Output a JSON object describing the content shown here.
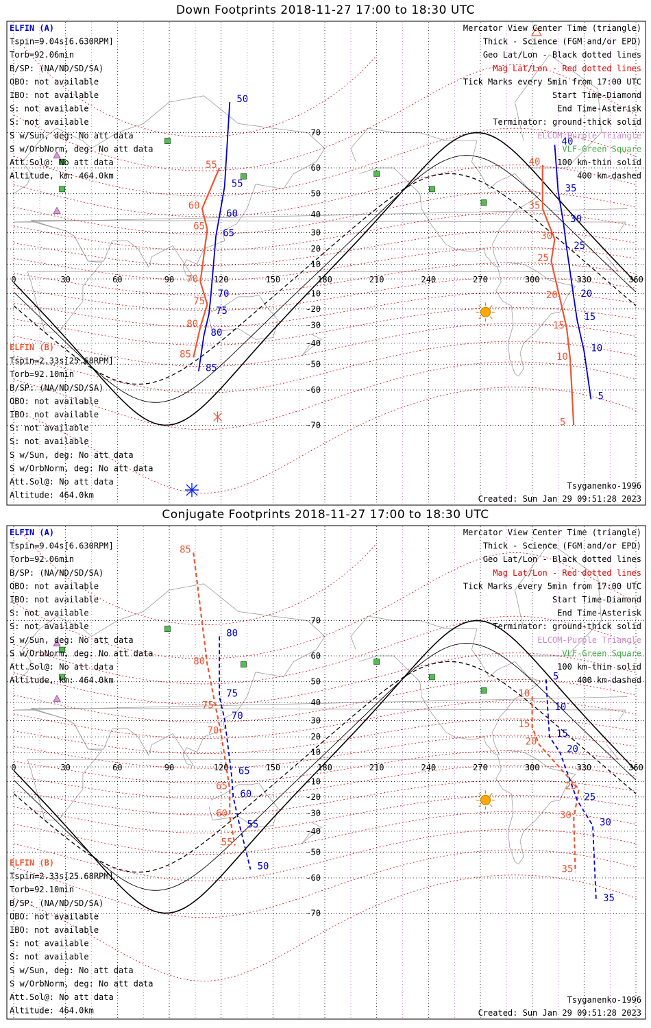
{
  "colors": {
    "elfin_a": "#0000cc",
    "elfin_b": "#ee5533",
    "mag_grid": "#dd0000",
    "geo_grid": "#000000",
    "lon_dots": "#cc66cc",
    "science": "#0000ff",
    "sun": "#ffaa00",
    "vlf": "#44aa44",
    "elcom": "#cc88cc",
    "coast": "#9a9a9a"
  },
  "icons": {
    "sun": "sun-icon",
    "elcom": "triangle-icon",
    "vlf": "square-icon",
    "start": "diamond-icon",
    "end": "asterisk-icon"
  },
  "lon_labels": [
    "0",
    "30",
    "60",
    "90",
    "120",
    "150",
    "180",
    "210",
    "240",
    "270",
    "300",
    "330",
    "360"
  ],
  "lat_labels": [
    "70",
    "60",
    "50",
    "40",
    "30",
    "20",
    "10",
    "-10",
    "-20",
    "-30",
    "-40",
    "-50",
    "-60",
    "-70"
  ],
  "panels": [
    {
      "title": "Down Footprints 2018-11-27 17:00 to 18:30 UTC",
      "legend": [
        {
          "text": "Mercator View Center Time (triangle)",
          "color": "#000000"
        },
        {
          "text": "Thick - Science (FGM and/or EPD)",
          "color": "#000000"
        },
        {
          "text": "Geo Lat/Lon - Black dotted lines",
          "color": "#000000"
        },
        {
          "text": "Mag Lat/Lon - Red dotted lines",
          "color": "#dd0000"
        },
        {
          "text": "Tick Marks every 5min from 17:00 UTC",
          "color": "#000000"
        },
        {
          "text": "Start Time-Diamond",
          "color": "#000000"
        },
        {
          "text": "End Time-Asterisk",
          "color": "#000000"
        },
        {
          "text": "Terminator: ground-thick solid",
          "color": "#000000"
        },
        {
          "text": "ELCOM-Purple Triangle",
          "color": "#cc88cc"
        },
        {
          "text": "VLF-Green Square",
          "color": "#44aa44"
        },
        {
          "text": "100 km-thin solid",
          "color": "#000000"
        },
        {
          "text": "400 km-dashed",
          "color": "#000000"
        }
      ],
      "elfin_a": {
        "name": "ELFIN (A)",
        "lines": [
          "Tspin=9.04s[6.630RPM]",
          "Torb=92.06min",
          "B/SP: (NA/ND/SD/SA)",
          "OBO: not available",
          "IBO: not available",
          "S: not available",
          "S: not available",
          "S w/Sun, deg: No att data",
          "S w/OrbNorm, deg: No att data",
          "Att.Sol@: No att data",
          "Altitude, km: 464.0km"
        ]
      },
      "elfin_b": {
        "name": "ELFIN (B)",
        "lines": [
          "Tspin=2.33s[25.68RPM]",
          "Torb=92.10min",
          "B/SP: (NA/ND/SD/SA)",
          "OBO: not available",
          "IBO: not available",
          "S: not available",
          "S: not available",
          "S w/Sun, deg: No att data",
          "S w/OrbNorm, deg: No att data",
          "Att.Sol@: No att data",
          "Altitude: 464.0km"
        ]
      },
      "model": "Tsyganenko-1996",
      "created": "Created: Sun Jan 29 09:51:28 2023",
      "track_a_ticks": [
        {
          "t": "50",
          "lon": 129,
          "lat": 76
        },
        {
          "t": "55",
          "lon": 126,
          "lat": 53
        },
        {
          "t": "60",
          "lon": 123,
          "lat": 39
        },
        {
          "t": "65",
          "lon": 121,
          "lat": 28
        },
        {
          "t": "70",
          "lon": 118,
          "lat": -12
        },
        {
          "t": "75",
          "lon": 117,
          "lat": -23
        },
        {
          "t": "80",
          "lon": 114,
          "lat": -36
        },
        {
          "t": "85",
          "lon": 111,
          "lat": -53
        },
        {
          "t": "40",
          "lon": 317,
          "lat": 67
        },
        {
          "t": "35",
          "lon": 319,
          "lat": 51
        },
        {
          "t": "30",
          "lon": 322,
          "lat": 36
        },
        {
          "t": "25",
          "lon": 324,
          "lat": 20
        },
        {
          "t": "20",
          "lon": 328,
          "lat": -12
        },
        {
          "t": "15",
          "lon": 330,
          "lat": -27
        },
        {
          "t": "10",
          "lon": 334,
          "lat": -44
        },
        {
          "t": "5",
          "lon": 338,
          "lat": -63
        }
      ],
      "track_b_ticks": [
        {
          "t": "55",
          "lon": 111,
          "lat": 60
        },
        {
          "t": "60",
          "lon": 101,
          "lat": 43
        },
        {
          "t": "65",
          "lon": 104,
          "lat": 32
        },
        {
          "t": "70",
          "lon": 100,
          "lat": -2
        },
        {
          "t": "75",
          "lon": 104,
          "lat": -17
        },
        {
          "t": "80",
          "lon": 100,
          "lat": -31
        },
        {
          "t": "85",
          "lon": 96,
          "lat": -47
        },
        {
          "t": "40",
          "lon": 298,
          "lat": 61
        },
        {
          "t": "35",
          "lon": 298,
          "lat": 43
        },
        {
          "t": "30",
          "lon": 305,
          "lat": 26
        },
        {
          "t": "25",
          "lon": 303,
          "lat": 12
        },
        {
          "t": "20",
          "lon": 308,
          "lat": -13
        },
        {
          "t": "15",
          "lon": 312,
          "lat": -32
        },
        {
          "t": "10",
          "lon": 314,
          "lat": -48
        },
        {
          "t": "5",
          "lon": 316,
          "lat": -70
        }
      ]
    },
    {
      "title": "Conjugate Footprints 2018-11-27 17:00 to 18:30 UTC",
      "legend": [
        {
          "text": "Mercator View Center Time (triangle)",
          "color": "#000000"
        },
        {
          "text": "Thick - Science (FGM and/or EPD)",
          "color": "#000000"
        },
        {
          "text": "Geo Lat/Lon - Black dotted lines",
          "color": "#000000"
        },
        {
          "text": "Mag Lat/Lon - Red dotted lines",
          "color": "#dd0000"
        },
        {
          "text": "Tick Marks every 5min from 17:00 UTC",
          "color": "#000000"
        },
        {
          "text": "Start Time-Diamond",
          "color": "#000000"
        },
        {
          "text": "End Time-Asterisk",
          "color": "#000000"
        },
        {
          "text": "Terminator: ground-thick solid",
          "color": "#000000"
        },
        {
          "text": "ELCOM-Purple Triangle",
          "color": "#cc88cc"
        },
        {
          "text": "VLF-Green Square",
          "color": "#44aa44"
        },
        {
          "text": "100 km-thin solid",
          "color": "#000000"
        },
        {
          "text": "400 km-dashed",
          "color": "#000000"
        }
      ],
      "elfin_a": {
        "name": "ELFIN (A)",
        "lines": [
          "Tspin=9.04s[6.630RPM]",
          "Torb=92.06min",
          "B/SP: (NA/ND/SD/SA)",
          "OBO: not available",
          "IBO: not available",
          "S: not available",
          "S: not available",
          "S w/Sun, deg: No att data",
          "S w/OrbNorm, deg: No att data",
          "Att.Sol@: No att data",
          "Altitude, km: 464.0km"
        ]
      },
      "elfin_b": {
        "name": "ELFIN (B)",
        "lines": [
          "Tspin=2.33s[25.68RPM]",
          "Torb=92.10min",
          "B/SP: (NA/ND/SD/SA)",
          "OBO: not available",
          "IBO: not available",
          "S: not available",
          "S: not available",
          "S w/Sun, deg: No att data",
          "S w/OrbNorm, deg: No att data",
          "Att.Sol@: No att data",
          "Altitude: 464.0km"
        ]
      },
      "model": "Tsyganenko-1996",
      "created": "Created: Sun Jan 29 09:51:28 2023",
      "track_a_ticks": [
        {
          "t": "80",
          "lon": 123,
          "lat": 66
        },
        {
          "t": "75",
          "lon": 123,
          "lat": 43
        },
        {
          "t": "70",
          "lon": 126,
          "lat": 31
        },
        {
          "t": "65",
          "lon": 130,
          "lat": -5
        },
        {
          "t": "60",
          "lon": 131,
          "lat": -20
        },
        {
          "t": "55",
          "lon": 135,
          "lat": -38
        },
        {
          "t": "50",
          "lon": 141,
          "lat": -57
        },
        {
          "t": "5",
          "lon": 312,
          "lat": 51
        },
        {
          "t": "10",
          "lon": 313,
          "lat": 36
        },
        {
          "t": "15",
          "lon": 314,
          "lat": 20
        },
        {
          "t": "20",
          "lon": 320,
          "lat": 10
        },
        {
          "t": "25",
          "lon": 330,
          "lat": -22
        },
        {
          "t": "30",
          "lon": 339,
          "lat": -37
        },
        {
          "t": "35",
          "lon": 341,
          "lat": -67
        }
      ],
      "track_b_ticks": [
        {
          "t": "85",
          "lon": 96,
          "lat": 81
        },
        {
          "t": "80",
          "lon": 104,
          "lat": 57
        },
        {
          "t": "75",
          "lon": 109,
          "lat": 37
        },
        {
          "t": "70",
          "lon": 112,
          "lat": 22
        },
        {
          "t": "65",
          "lon": 117,
          "lat": -15
        },
        {
          "t": "60",
          "lon": 117,
          "lat": -32
        },
        {
          "t": "55",
          "lon": 120,
          "lat": -47
        },
        {
          "t": "10",
          "lon": 292,
          "lat": 43
        },
        {
          "t": "15",
          "lon": 292,
          "lat": 26
        },
        {
          "t": "20",
          "lon": 296,
          "lat": 15
        },
        {
          "t": "25",
          "lon": 319,
          "lat": -15
        },
        {
          "t": "30",
          "lon": 316,
          "lat": -33
        },
        {
          "t": "35",
          "lon": 317,
          "lat": -58
        }
      ]
    }
  ]
}
